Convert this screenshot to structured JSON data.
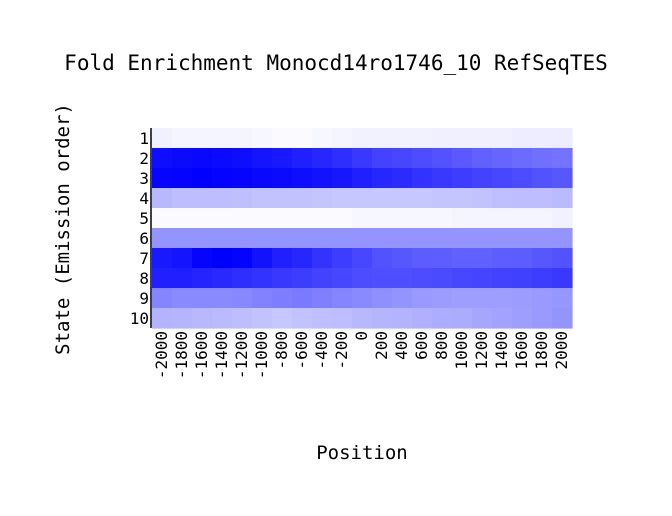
{
  "chart_data": {
    "type": "heatmap",
    "title": "Fold Enrichment Monocd14ro1746_10 RefSeqTES",
    "xlabel": "Position",
    "ylabel": "State (Emission order)",
    "x_ticks": [
      "-2000",
      "-1800",
      "-1600",
      "-1400",
      "-1200",
      "-1000",
      "-800",
      "-600",
      "-400",
      "-200",
      "0",
      "200",
      "400",
      "600",
      "800",
      "1000",
      "1200",
      "1400",
      "1600",
      "1800",
      "2000"
    ],
    "y_ticks": [
      "1",
      "2",
      "3",
      "4",
      "5",
      "6",
      "7",
      "8",
      "9",
      "10"
    ],
    "color_scale": {
      "low": "#ffffff",
      "high": "#0000ff"
    },
    "intensity_range": [
      0,
      1
    ],
    "values": [
      [
        0.06,
        0.04,
        0.04,
        0.04,
        0.04,
        0.03,
        0.02,
        0.02,
        0.03,
        0.04,
        0.05,
        0.05,
        0.05,
        0.05,
        0.06,
        0.06,
        0.06,
        0.06,
        0.07,
        0.07,
        0.07
      ],
      [
        0.95,
        0.96,
        0.97,
        0.96,
        0.95,
        0.92,
        0.9,
        0.88,
        0.85,
        0.82,
        0.78,
        0.74,
        0.72,
        0.7,
        0.68,
        0.65,
        0.62,
        0.6,
        0.58,
        0.56,
        0.55
      ],
      [
        0.98,
        0.99,
        1.0,
        0.99,
        0.98,
        0.97,
        0.96,
        0.95,
        0.93,
        0.91,
        0.88,
        0.85,
        0.83,
        0.8,
        0.78,
        0.76,
        0.74,
        0.72,
        0.7,
        0.68,
        0.66
      ],
      [
        0.28,
        0.26,
        0.26,
        0.26,
        0.25,
        0.24,
        0.24,
        0.24,
        0.23,
        0.22,
        0.22,
        0.22,
        0.22,
        0.22,
        0.23,
        0.23,
        0.24,
        0.25,
        0.26,
        0.26,
        0.27
      ],
      [
        0.02,
        0.02,
        0.02,
        0.02,
        0.02,
        0.02,
        0.02,
        0.02,
        0.02,
        0.02,
        0.03,
        0.03,
        0.03,
        0.03,
        0.03,
        0.04,
        0.04,
        0.04,
        0.04,
        0.04,
        0.05
      ],
      [
        0.42,
        0.42,
        0.42,
        0.42,
        0.42,
        0.42,
        0.42,
        0.42,
        0.42,
        0.42,
        0.42,
        0.42,
        0.42,
        0.42,
        0.42,
        0.42,
        0.42,
        0.42,
        0.42,
        0.42,
        0.42
      ],
      [
        0.9,
        0.92,
        0.98,
        1.0,
        0.99,
        0.93,
        0.88,
        0.85,
        0.8,
        0.76,
        0.72,
        0.68,
        0.66,
        0.64,
        0.63,
        0.62,
        0.62,
        0.63,
        0.64,
        0.66,
        0.68
      ],
      [
        0.88,
        0.88,
        0.86,
        0.84,
        0.82,
        0.8,
        0.78,
        0.76,
        0.74,
        0.72,
        0.7,
        0.69,
        0.69,
        0.7,
        0.71,
        0.72,
        0.73,
        0.74,
        0.75,
        0.76,
        0.78
      ],
      [
        0.48,
        0.46,
        0.46,
        0.46,
        0.47,
        0.49,
        0.51,
        0.52,
        0.5,
        0.48,
        0.46,
        0.44,
        0.42,
        0.4,
        0.39,
        0.38,
        0.38,
        0.38,
        0.39,
        0.4,
        0.41
      ],
      [
        0.3,
        0.29,
        0.28,
        0.27,
        0.26,
        0.24,
        0.22,
        0.24,
        0.25,
        0.26,
        0.28,
        0.29,
        0.3,
        0.31,
        0.32,
        0.33,
        0.35,
        0.36,
        0.38,
        0.4,
        0.42
      ]
    ]
  }
}
